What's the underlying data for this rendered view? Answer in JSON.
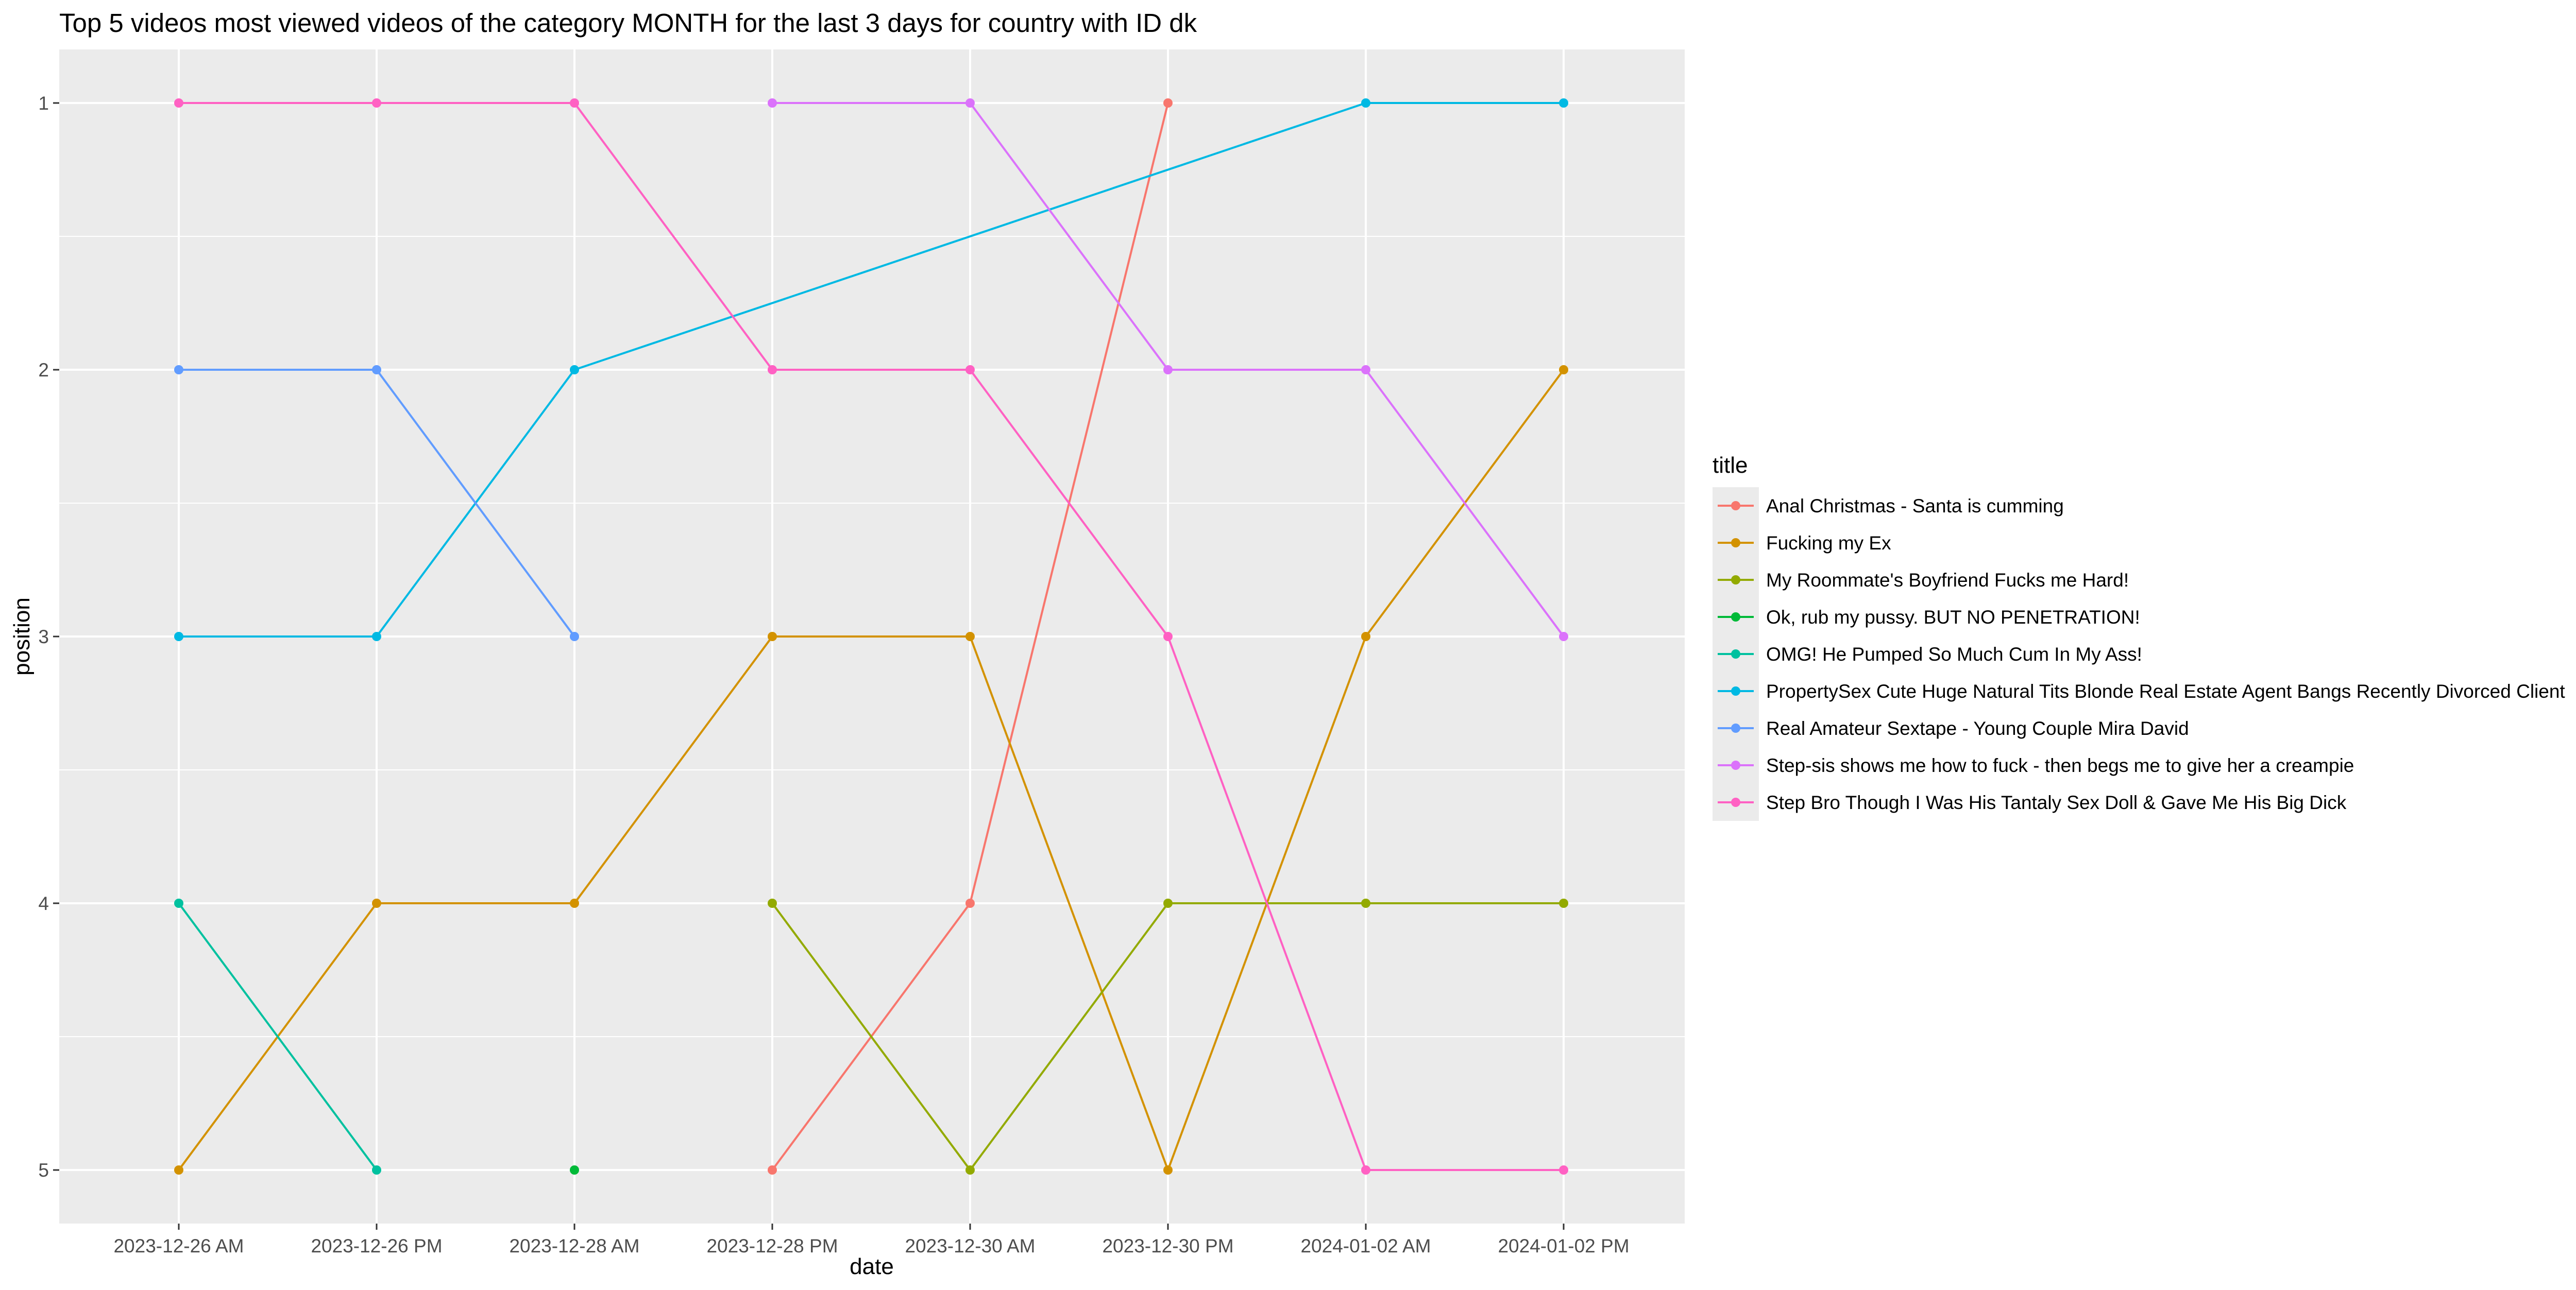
{
  "chart_data": {
    "type": "line",
    "title": "Top 5 videos most viewed videos of the category MONTH for the last 3 days for country with ID dk",
    "xlabel": "date",
    "ylabel": "position",
    "x": [
      "2023-12-26  AM",
      "2023-12-26  PM",
      "2023-12-28  AM",
      "2023-12-28  PM",
      "2023-12-30  AM",
      "2023-12-30  PM",
      "2024-01-02  AM",
      "2024-01-02  PM"
    ],
    "y_ticks": [
      1,
      2,
      3,
      4,
      5
    ],
    "ylim": [
      1,
      5
    ],
    "y_reversed": true,
    "grid": true,
    "legend_title": "title",
    "legend_position": "right",
    "series": [
      {
        "name": "Anal Christmas - Santa is cumming",
        "color": "#F8766D",
        "values": [
          null,
          null,
          null,
          5,
          4,
          1,
          null,
          null
        ]
      },
      {
        "name": "Fucking my Ex",
        "color": "#D39200",
        "values": [
          5,
          4,
          4,
          3,
          3,
          5,
          3,
          2
        ]
      },
      {
        "name": "My Roommate's Boyfriend Fucks me Hard!",
        "color": "#93AA00",
        "values": [
          null,
          null,
          null,
          4,
          5,
          4,
          4,
          4
        ]
      },
      {
        "name": "Ok, rub my pussy. BUT NO PENETRATION!",
        "color": "#00BA38",
        "values": [
          null,
          null,
          5,
          null,
          null,
          null,
          null,
          null
        ]
      },
      {
        "name": "OMG! He Pumped So Much Cum In My Ass!",
        "color": "#00C19F",
        "values": [
          4,
          5,
          null,
          null,
          null,
          null,
          null,
          null
        ]
      },
      {
        "name": "PropertySex Cute Huge Natural Tits Blonde Real Estate Agent Bangs Recently Divorced Client",
        "color": "#00B9E3",
        "values": [
          3,
          3,
          2,
          null,
          null,
          null,
          1,
          1
        ]
      },
      {
        "name": "Real Amateur Sextape - Young Couple Mira David",
        "color": "#619CFF",
        "values": [
          2,
          2,
          3,
          null,
          null,
          null,
          null,
          null
        ]
      },
      {
        "name": "Step-sis shows me how to fuck - then begs me to give her a creampie",
        "color": "#DB72FB",
        "values": [
          null,
          null,
          null,
          1,
          1,
          2,
          2,
          3
        ]
      },
      {
        "name": "Step Bro Though I Was His Tantaly Sex Doll & Gave Me His Big Dick",
        "color": "#FF61C3",
        "values": [
          1,
          1,
          1,
          2,
          2,
          3,
          5,
          5
        ]
      }
    ]
  }
}
